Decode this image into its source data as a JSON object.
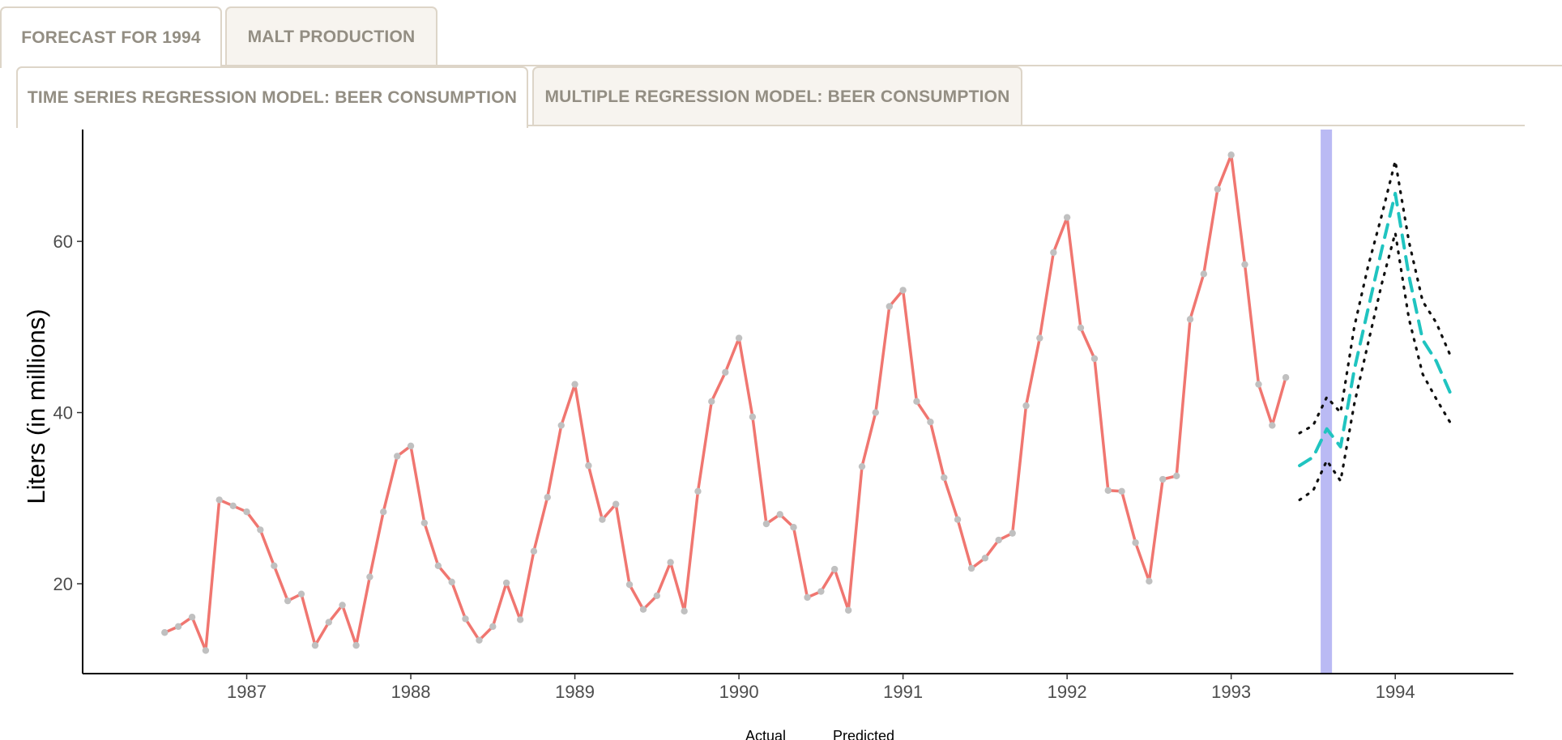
{
  "tabs_top": [
    {
      "label": "FORECAST FOR 1994",
      "active": true
    },
    {
      "label": "MALT PRODUCTION",
      "active": false
    }
  ],
  "tabs_sub": [
    {
      "label": "TIME SERIES REGRESSION MODEL: BEER CONSUMPTION",
      "active": true
    },
    {
      "label": "MULTIPLE REGRESSION MODEL: BEER CONSUMPTION",
      "active": false
    }
  ],
  "colors": {
    "actual": "#f07670",
    "points": "#c0c0c0",
    "predicted": "#20c4c0",
    "interval": "#111111",
    "marker": "#babaf4",
    "tab_text": "#938e83",
    "tab_border": "#ddd5c8"
  },
  "chart_data": {
    "type": "line",
    "ylabel": "Liters (in millions)",
    "xlim": [
      1986.0,
      1994.72
    ],
    "ylim": [
      9.5,
      72.5
    ],
    "x_ticks": [
      1987,
      1988,
      1989,
      1990,
      1991,
      1992,
      1993,
      1994
    ],
    "y_ticks": [
      20,
      40,
      60
    ],
    "grid": false,
    "legend_position": "bottom",
    "marker_x": 1993.58,
    "series": [
      {
        "name": "Actual",
        "style": "solid",
        "x": [
          1986.5,
          1986.583,
          1986.667,
          1986.75,
          1986.833,
          1986.917,
          1987.0,
          1987.083,
          1987.167,
          1987.25,
          1987.333,
          1987.417,
          1987.5,
          1987.583,
          1987.667,
          1987.75,
          1987.833,
          1987.917,
          1988.0,
          1988.083,
          1988.167,
          1988.25,
          1988.333,
          1988.417,
          1988.5,
          1988.583,
          1988.667,
          1988.75,
          1988.833,
          1988.917,
          1989.0,
          1989.083,
          1989.167,
          1989.25,
          1989.333,
          1989.417,
          1989.5,
          1989.583,
          1989.667,
          1989.75,
          1989.833,
          1989.917,
          1990.0,
          1990.083,
          1990.167,
          1990.25,
          1990.333,
          1990.417,
          1990.5,
          1990.583,
          1990.667,
          1990.75,
          1990.833,
          1990.917,
          1991.0,
          1991.083,
          1991.167,
          1991.25,
          1991.333,
          1991.417,
          1991.5,
          1991.583,
          1991.667,
          1991.75,
          1991.833,
          1991.917,
          1992.0,
          1992.083,
          1992.167,
          1992.25,
          1992.333,
          1992.417,
          1992.5,
          1992.583,
          1992.667,
          1992.75,
          1992.833,
          1992.917,
          1993.0,
          1993.083,
          1993.167,
          1993.25,
          1993.333
        ],
        "y": [
          14.3,
          15.0,
          16.1,
          12.2,
          29.8,
          29.1,
          28.4,
          26.3,
          22.1,
          18.0,
          18.8,
          12.8,
          15.5,
          17.5,
          12.8,
          20.8,
          28.4,
          34.9,
          36.1,
          27.1,
          22.1,
          20.2,
          15.9,
          13.4,
          15.0,
          20.1,
          15.8,
          23.8,
          30.1,
          38.5,
          43.3,
          33.8,
          27.5,
          29.3,
          19.9,
          17.0,
          18.6,
          22.5,
          16.8,
          30.8,
          41.3,
          44.7,
          48.7,
          39.5,
          27.0,
          28.1,
          26.6,
          18.4,
          19.1,
          21.7,
          16.9,
          33.7,
          40.0,
          52.4,
          54.3,
          41.3,
          38.9,
          32.4,
          27.5,
          21.8,
          23.0,
          25.1,
          25.9,
          40.8,
          48.7,
          58.7,
          62.8,
          49.9,
          46.3,
          30.9,
          30.8,
          24.8,
          20.3,
          32.2,
          32.6,
          50.9,
          56.2,
          66.1,
          70.1,
          57.3,
          43.3,
          38.5,
          44.1
        ]
      },
      {
        "name": "Predicted",
        "style": "dashed",
        "x": [
          1993.417,
          1993.5,
          1993.583,
          1993.667,
          1993.75,
          1993.833,
          1993.917,
          1994.0,
          1994.083,
          1994.167,
          1994.25,
          1994.333
        ],
        "y": [
          33.8,
          34.8,
          38.1,
          36.0,
          45.0,
          52.0,
          59.0,
          65.6,
          56.0,
          48.5,
          46.0,
          42.4
        ]
      },
      {
        "name": "Upper interval",
        "style": "dotted",
        "x": [
          1993.417,
          1993.5,
          1993.583,
          1993.667,
          1993.75,
          1993.833,
          1993.917,
          1994.0,
          1994.083,
          1994.167,
          1994.25,
          1994.333
        ],
        "y": [
          37.6,
          38.5,
          41.8,
          40.0,
          50.0,
          57.0,
          63.0,
          69.4,
          60.0,
          53.0,
          50.5,
          46.8
        ]
      },
      {
        "name": "Lower interval",
        "style": "dotted",
        "x": [
          1993.417,
          1993.5,
          1993.583,
          1993.667,
          1993.75,
          1993.833,
          1993.917,
          1994.0,
          1994.083,
          1994.167,
          1994.25,
          1994.333
        ],
        "y": [
          29.8,
          30.9,
          34.4,
          32.0,
          41.0,
          48.0,
          55.0,
          61.0,
          51.0,
          44.5,
          41.6,
          38.9
        ]
      }
    ],
    "legend": [
      "Actual",
      "Predicted"
    ]
  }
}
